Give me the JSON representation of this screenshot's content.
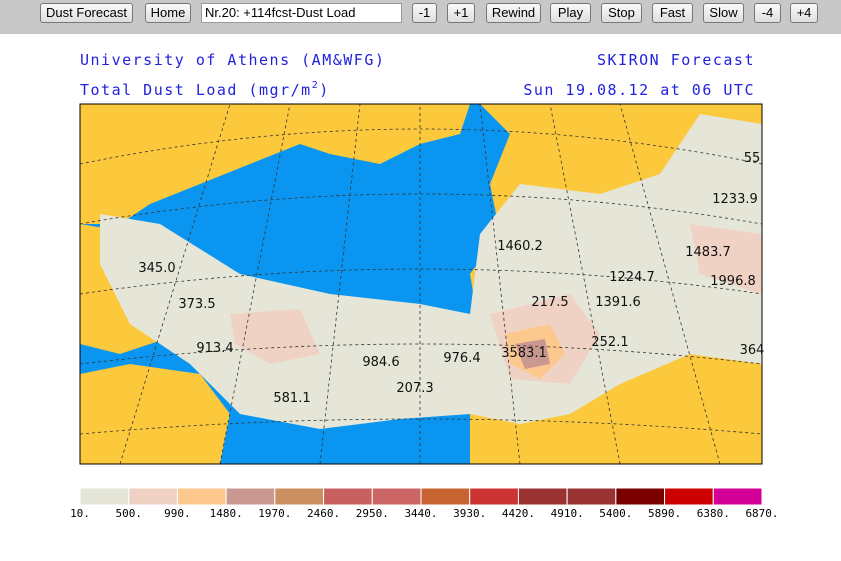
{
  "toolbar": {
    "buttons_left": [
      "Dust Forecast",
      "Home"
    ],
    "input": "Nr.20: +114fcst-Dust Load",
    "buttons_right": [
      "-1",
      "+1",
      "Rewind",
      "Play",
      "Stop",
      "Fast",
      "Slow",
      "-4",
      "+4"
    ]
  },
  "header": {
    "institution": "University of Athens (AM&WFG)",
    "product": "SKIRON Forecast",
    "field": "Total Dust Load (mgr/m",
    "field_sup": "2",
    "field_end": ")",
    "valid_time": "Sun 19.08.12 at 06 UTC"
  },
  "map": {
    "labels": [
      "345.0",
      "373.5",
      "913.4",
      "581.1",
      "984.6",
      "207.3",
      "976.4",
      "3583.1",
      "252.1",
      "1460.2",
      "217.5",
      "1391.6",
      "1224.7",
      "1483.7",
      "1996.8",
      "1233.9",
      "55",
      "364"
    ]
  },
  "colorbar": {
    "colors": [
      "#e6e6d8",
      "#f0d2c4",
      "#fcc88e",
      "#c99890",
      "#cc9060",
      "#c96060",
      "#cc6666",
      "#c86432",
      "#cc3333",
      "#9a3232",
      "#993333",
      "#7a0000",
      "#cc0000",
      "#d20096"
    ],
    "labels": [
      "10.",
      "500.",
      "990.",
      "1480.",
      "1970.",
      "2460.",
      "2950.",
      "3440.",
      "3930.",
      "4420.",
      "4910.",
      "5400.",
      "5890.",
      "6380.",
      "6870."
    ]
  }
}
